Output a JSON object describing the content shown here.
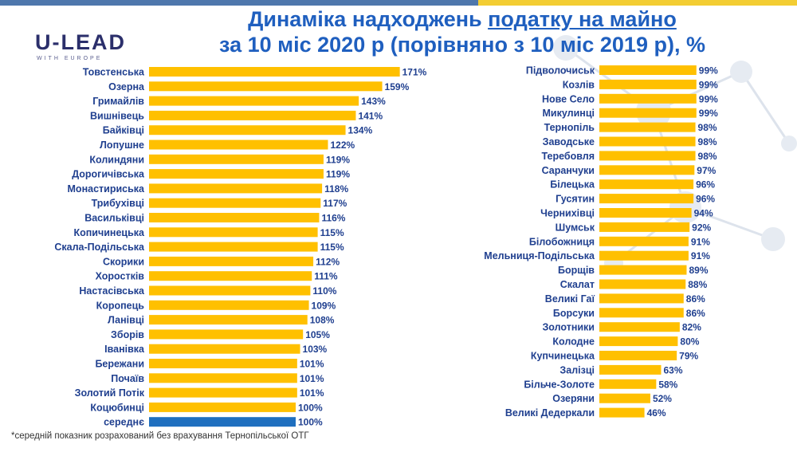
{
  "header": {
    "logo_main": "U-LEAD",
    "logo_sub": "WITH EUROPE",
    "title_part1": "Динаміка надходжень ",
    "title_underlined": "податку на майно",
    "title_line2": "за 10 міс 2020 р (порівняно з 10 міс 2019 р), %"
  },
  "footnote": "*середній показник розрахований без врахування Тернопільської ОТГ",
  "colors": {
    "bar": "#ffc000",
    "average_bar": "#1f6fbf",
    "title": "#1f5fbf",
    "label": "#1f3f8f"
  },
  "chart_data": [
    {
      "type": "bar",
      "orientation": "horizontal",
      "value_suffix": "%",
      "categories": [
        "Товстенська",
        "Озерна",
        "Гримайлів",
        "Вишнівець",
        "Байківці",
        "Лопушне",
        "Колиндяни",
        "Дорогичівська",
        "Монастириська",
        "Трибухівці",
        "Васильківці",
        "Копичинецька",
        "Скала-Подільська",
        "Скорики",
        "Хоростків",
        "Настасівська",
        "Коропець",
        "Ланівці",
        "Зборів",
        "Іванівка",
        "Бережани",
        "Почаїв",
        "Золотий Потік",
        "Коцюбинці",
        "середнє"
      ],
      "values": [
        171,
        159,
        143,
        141,
        134,
        122,
        119,
        119,
        118,
        117,
        116,
        115,
        115,
        112,
        111,
        110,
        109,
        108,
        105,
        103,
        101,
        101,
        101,
        100,
        100
      ],
      "highlight_index": 24
    },
    {
      "type": "bar",
      "orientation": "horizontal",
      "value_suffix": "%",
      "categories": [
        "Підволочиськ",
        "Козлів",
        "Нове Село",
        "Микулинці",
        "Тернопіль",
        "Заводське",
        "Теребовля",
        "Саранчуки",
        "Білецька",
        "Гусятин",
        "Чернихівці",
        "Шумськ",
        "Білобожниця",
        "Мельниця-Подільська",
        "Борщів",
        "Скалат",
        "Великі Гаї",
        "Борсуки",
        "Золотники",
        "Колодне",
        "Купчинецька",
        "Залізці",
        "Більче-Золоте",
        "Озеряни",
        "Великі Дедеркали"
      ],
      "values": [
        99,
        99,
        99,
        99,
        98,
        98,
        98,
        97,
        96,
        96,
        94,
        92,
        91,
        91,
        89,
        88,
        86,
        86,
        82,
        80,
        79,
        63,
        58,
        52,
        46
      ]
    }
  ]
}
